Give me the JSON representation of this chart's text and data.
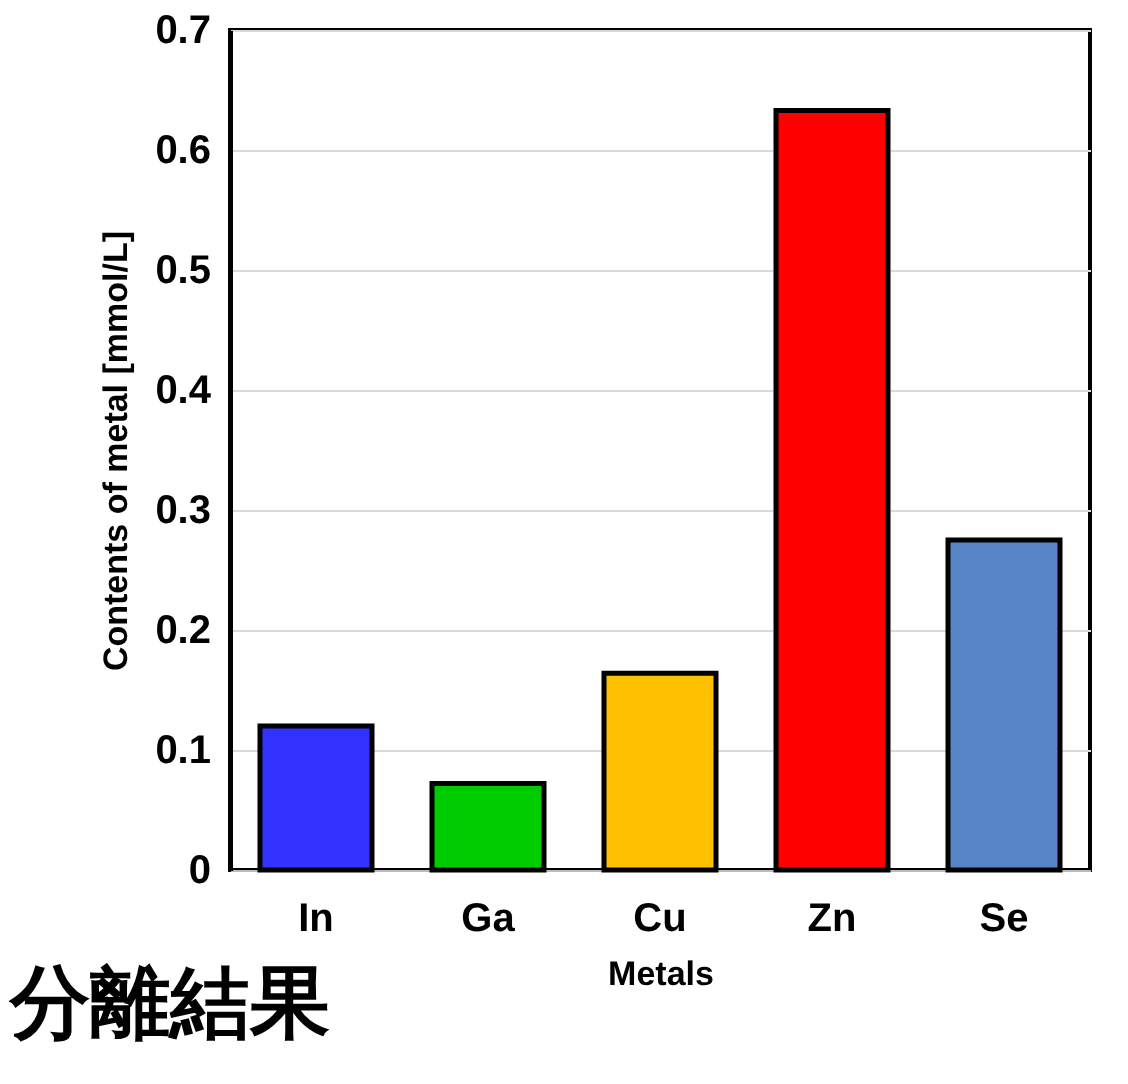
{
  "chart_data": {
    "type": "bar",
    "xlabel": "Metals",
    "ylabel": "Contents of metal [mmol/L]",
    "categories": [
      "In",
      "Ga",
      "Cu",
      "Zn",
      "Se"
    ],
    "values": [
      0.12,
      0.072,
      0.164,
      0.633,
      0.275
    ],
    "colors": [
      "#3333ff",
      "#00cc00",
      "#ffc000",
      "#ff0000",
      "#5585c6"
    ],
    "ylim": [
      0,
      0.7
    ],
    "yticks": [
      0,
      0.1,
      0.2,
      0.3,
      0.4,
      0.5,
      0.6,
      0.7
    ],
    "grid": "y",
    "annotations": [
      "分離結果"
    ]
  }
}
